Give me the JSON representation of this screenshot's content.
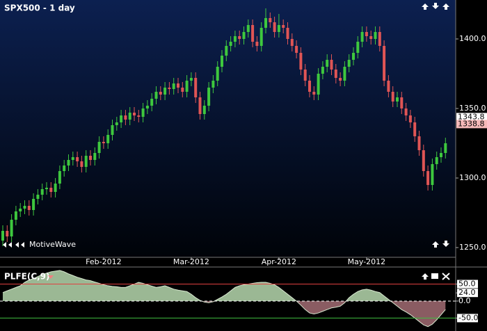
{
  "chart_data": [
    {
      "type": "candlestick",
      "title": "SPX500 - 1 day",
      "watermark": "MotiveWave",
      "categories": [
        null,
        null,
        null,
        null,
        null,
        null,
        null,
        null,
        null,
        null,
        null,
        null,
        null,
        null,
        null,
        null,
        null,
        null,
        null,
        null,
        null,
        null,
        null,
        "Feb-2012",
        null,
        null,
        null,
        null,
        null,
        null,
        null,
        null,
        null,
        null,
        null,
        null,
        null,
        null,
        null,
        null,
        null,
        null,
        null,
        "Mar-2012",
        null,
        null,
        null,
        null,
        null,
        null,
        null,
        null,
        null,
        null,
        null,
        null,
        null,
        null,
        null,
        null,
        null,
        null,
        null,
        "Apr-2012",
        null,
        null,
        null,
        null,
        null,
        null,
        null,
        null,
        null,
        null,
        null,
        null,
        null,
        null,
        null,
        null,
        null,
        null,
        null,
        "May-2012",
        null,
        null,
        null,
        null,
        null,
        null,
        null,
        null,
        null,
        null,
        null,
        null,
        null,
        null,
        null,
        null,
        null,
        null
      ],
      "open": [
        1255,
        1262,
        1258,
        1270,
        1276,
        1278,
        1280,
        1277,
        1285,
        1288,
        1292,
        1293,
        1290,
        1296,
        1305,
        1309,
        1313,
        1315,
        1312,
        1308,
        1316,
        1313,
        1318,
        1326,
        1325,
        1331,
        1338,
        1340,
        1345,
        1342,
        1347,
        1345,
        1344,
        1350,
        1352,
        1357,
        1362,
        1360,
        1365,
        1364,
        1368,
        1365,
        1362,
        1370,
        1372,
        1358,
        1346,
        1352,
        1365,
        1370,
        1380,
        1388,
        1395,
        1398,
        1402,
        1400,
        1405,
        1410,
        1398,
        1395,
        1408,
        1415,
        1412,
        1405,
        1410,
        1408,
        1400,
        1395,
        1390,
        1378,
        1370,
        1362,
        1360,
        1375,
        1380,
        1385,
        1378,
        1372,
        1370,
        1380,
        1385,
        1390,
        1398,
        1405,
        1402,
        1400,
        1405,
        1395,
        1370,
        1362,
        1355,
        1358,
        1350,
        1345,
        1340,
        1330,
        1320,
        1305,
        1295,
        1310,
        1315,
        1318
      ],
      "high": [
        1266,
        1266,
        1274,
        1280,
        1282,
        1284,
        1284,
        1289,
        1292,
        1296,
        1297,
        1297,
        1300,
        1309,
        1313,
        1317,
        1319,
        1319,
        1316,
        1320,
        1320,
        1322,
        1330,
        1330,
        1335,
        1342,
        1344,
        1349,
        1349,
        1351,
        1351,
        1349,
        1354,
        1356,
        1361,
        1366,
        1366,
        1369,
        1369,
        1372,
        1372,
        1369,
        1374,
        1376,
        1376,
        1362,
        1356,
        1369,
        1374,
        1384,
        1392,
        1399,
        1402,
        1406,
        1406,
        1409,
        1414,
        1414,
        1402,
        1412,
        1422,
        1419,
        1416,
        1418,
        1414,
        1412,
        1404,
        1399,
        1394,
        1382,
        1374,
        1366,
        1379,
        1384,
        1389,
        1389,
        1382,
        1376,
        1384,
        1389,
        1394,
        1402,
        1409,
        1409,
        1406,
        1409,
        1409,
        1399,
        1374,
        1366,
        1362,
        1362,
        1354,
        1349,
        1344,
        1334,
        1324,
        1309,
        1314,
        1319,
        1322,
        1329
      ],
      "low": [
        1251,
        1254,
        1254,
        1266,
        1272,
        1274,
        1273,
        1273,
        1281,
        1284,
        1288,
        1286,
        1286,
        1292,
        1301,
        1305,
        1309,
        1308,
        1304,
        1304,
        1309,
        1309,
        1314,
        1321,
        1321,
        1327,
        1334,
        1336,
        1338,
        1338,
        1341,
        1340,
        1340,
        1346,
        1348,
        1353,
        1356,
        1356,
        1360,
        1360,
        1361,
        1358,
        1358,
        1366,
        1354,
        1342,
        1342,
        1348,
        1361,
        1366,
        1376,
        1384,
        1391,
        1394,
        1396,
        1396,
        1401,
        1394,
        1391,
        1391,
        1404,
        1408,
        1401,
        1401,
        1404,
        1396,
        1391,
        1386,
        1374,
        1366,
        1358,
        1356,
        1356,
        1371,
        1376,
        1374,
        1368,
        1366,
        1366,
        1376,
        1381,
        1386,
        1394,
        1398,
        1396,
        1396,
        1391,
        1366,
        1358,
        1351,
        1351,
        1346,
        1341,
        1336,
        1326,
        1316,
        1301,
        1291,
        1291,
        1306,
        1311,
        1314
      ],
      "close": [
        1262,
        1258,
        1270,
        1276,
        1278,
        1280,
        1277,
        1285,
        1288,
        1292,
        1293,
        1290,
        1296,
        1305,
        1309,
        1313,
        1315,
        1312,
        1308,
        1316,
        1313,
        1318,
        1326,
        1325,
        1331,
        1338,
        1340,
        1345,
        1342,
        1347,
        1345,
        1344,
        1350,
        1352,
        1357,
        1362,
        1360,
        1365,
        1364,
        1368,
        1365,
        1362,
        1370,
        1372,
        1358,
        1346,
        1352,
        1365,
        1370,
        1380,
        1388,
        1395,
        1398,
        1402,
        1400,
        1405,
        1410,
        1398,
        1395,
        1408,
        1415,
        1412,
        1405,
        1410,
        1408,
        1400,
        1395,
        1390,
        1378,
        1370,
        1362,
        1360,
        1375,
        1380,
        1385,
        1378,
        1372,
        1370,
        1380,
        1385,
        1390,
        1398,
        1405,
        1402,
        1400,
        1405,
        1395,
        1370,
        1362,
        1355,
        1358,
        1350,
        1345,
        1340,
        1330,
        1320,
        1305,
        1295,
        1310,
        1315,
        1318,
        1325
      ],
      "up_color": "#3ec83e",
      "down_color": "#e05555",
      "ylim": [
        1243,
        1428
      ],
      "yticks": [
        {
          "value": 1250,
          "label": "1250.0"
        },
        {
          "value": 1300,
          "label": "1300.0"
        },
        {
          "value": 1350,
          "label": "1350.0"
        },
        {
          "value": 1400,
          "label": "1400.0"
        }
      ],
      "price_labels": [
        {
          "value": 1343.8,
          "label": "1343.8",
          "color": "#ffffff"
        },
        {
          "value": 1338.8,
          "label": "1338.8",
          "color": "#f5b8b8"
        }
      ]
    },
    {
      "type": "area",
      "title": "PLFE(C,9)",
      "values": [
        25,
        30,
        35,
        40,
        45,
        55,
        62,
        66,
        72,
        78,
        82,
        86,
        88,
        90,
        86,
        80,
        75,
        70,
        66,
        62,
        60,
        56,
        52,
        48,
        45,
        43,
        42,
        40,
        40,
        45,
        50,
        55,
        52,
        48,
        44,
        40,
        42,
        45,
        40,
        35,
        32,
        30,
        28,
        20,
        10,
        2,
        -3,
        -5,
        -2,
        5,
        12,
        20,
        30,
        40,
        45,
        48,
        50,
        52,
        54,
        55,
        55,
        52,
        48,
        40,
        30,
        20,
        10,
        0,
        -12,
        -25,
        -35,
        -38,
        -35,
        -30,
        -25,
        -20,
        -18,
        -15,
        -5,
        10,
        20,
        28,
        33,
        35,
        32,
        28,
        25,
        15,
        5,
        -5,
        -15,
        -25,
        -32,
        -40,
        -50,
        -60,
        -70,
        -75,
        -68,
        -55,
        -40,
        -25
      ],
      "positive_color": "#9bb894",
      "negative_color": "#8a5c62",
      "ylim": [
        -88,
        98
      ],
      "yticks": [
        {
          "value": 50,
          "label": "50.0"
        },
        {
          "value": 24,
          "label": "24.0"
        },
        {
          "value": 0,
          "label": "0.0"
        },
        {
          "value": -50,
          "label": "-50.0"
        }
      ],
      "levels": [
        {
          "value": 50,
          "color": "#e04040"
        },
        {
          "value": 0,
          "color": "#ffffff"
        },
        {
          "value": -50,
          "color": "#40c040"
        }
      ]
    }
  ]
}
